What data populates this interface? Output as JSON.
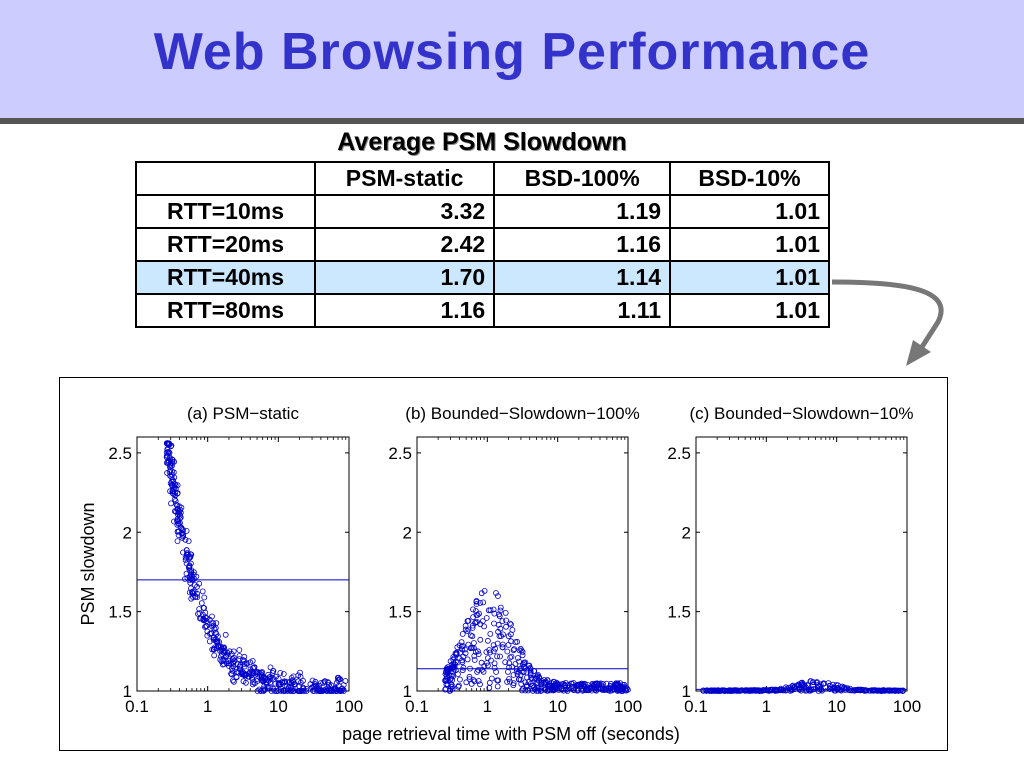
{
  "slide": {
    "title": "Web Browsing Performance"
  },
  "table": {
    "caption": "Average PSM Slowdown",
    "columns": [
      "",
      "PSM-static",
      "BSD-100%",
      "BSD-10%"
    ],
    "rows": [
      {
        "label": "RTT=10ms",
        "values": [
          "3.32",
          "1.19",
          "1.01"
        ]
      },
      {
        "label": "RTT=20ms",
        "values": [
          "2.42",
          "1.16",
          "1.01"
        ]
      },
      {
        "label": "RTT=40ms",
        "values": [
          "1.70",
          "1.14",
          "1.01"
        ]
      },
      {
        "label": "RTT=80ms",
        "values": [
          "1.16",
          "1.11",
          "1.01"
        ]
      }
    ],
    "highlight_row": 2,
    "highlight_color": "#cce8ff"
  },
  "chart_data": {
    "type": "scatter",
    "ylabel": "PSM slowdown",
    "xlabel": "page retrieval time with PSM off (seconds)",
    "x_scale": "log",
    "xlim": [
      0.1,
      100
    ],
    "ylim": [
      1,
      2.6
    ],
    "x_ticks": [
      "0.1",
      "1",
      "10",
      "100"
    ],
    "y_ticks": [
      "1",
      "1.5",
      "2",
      "2.5"
    ],
    "marker_color": "#0000cc",
    "panels": [
      {
        "title": "(a) PSM−static",
        "mean_line": 1.7
      },
      {
        "title": "(b) Bounded−Slowdown−100%",
        "mean_line": 1.14
      },
      {
        "title": "(c) Bounded−Slowdown−10%",
        "mean_line": 1.01
      }
    ]
  }
}
